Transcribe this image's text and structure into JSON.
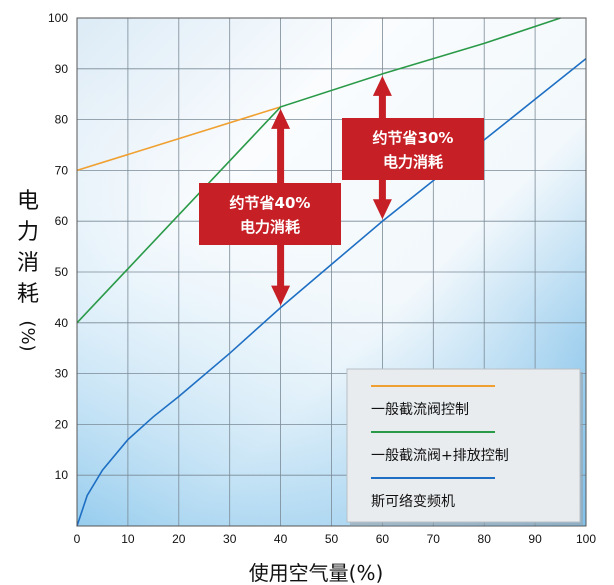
{
  "chart_data": {
    "type": "line",
    "xlabel": "使用空气量(%)",
    "ylabel": "电力消耗(%)",
    "xlim": [
      0,
      100
    ],
    "ylim": [
      0,
      100
    ],
    "x_ticks": [
      "0",
      "10",
      "20",
      "30",
      "40",
      "50",
      "60",
      "70",
      "80",
      "90",
      "100"
    ],
    "y_ticks": [
      "10",
      "20",
      "30",
      "40",
      "50",
      "60",
      "70",
      "80",
      "90",
      "100"
    ],
    "grid": true,
    "legend_placement": "bottom-right",
    "series": [
      {
        "name": "一般截流阀控制",
        "color": "#f0a030",
        "x": [
          0,
          40
        ],
        "y": [
          70,
          82.5
        ]
      },
      {
        "name": "一般截流阀+排放控制",
        "color": "#2a9a48",
        "x": [
          0,
          40,
          60,
          80,
          95
        ],
        "y": [
          40,
          82.5,
          89,
          95,
          100
        ]
      },
      {
        "name": "斯可络变频机",
        "color": "#1e6fc4",
        "x": [
          0,
          2,
          5,
          10,
          15,
          20,
          30,
          40,
          50,
          60,
          70,
          80,
          90,
          100
        ],
        "y": [
          0,
          6,
          11,
          17,
          21.5,
          25.5,
          34,
          43,
          51.5,
          60,
          68,
          76,
          84,
          92
        ]
      }
    ],
    "annotations": [
      {
        "id": "saving40",
        "lines": [
          "约节省40%",
          "电力消耗"
        ],
        "x": 40,
        "y_from": 43,
        "y_to": 82.5,
        "color": "#c62026"
      },
      {
        "id": "saving30",
        "lines": [
          "约节省30%",
          "电力消耗"
        ],
        "x": 60,
        "y_from": 60,
        "y_to": 89,
        "color": "#c62026"
      }
    ]
  }
}
